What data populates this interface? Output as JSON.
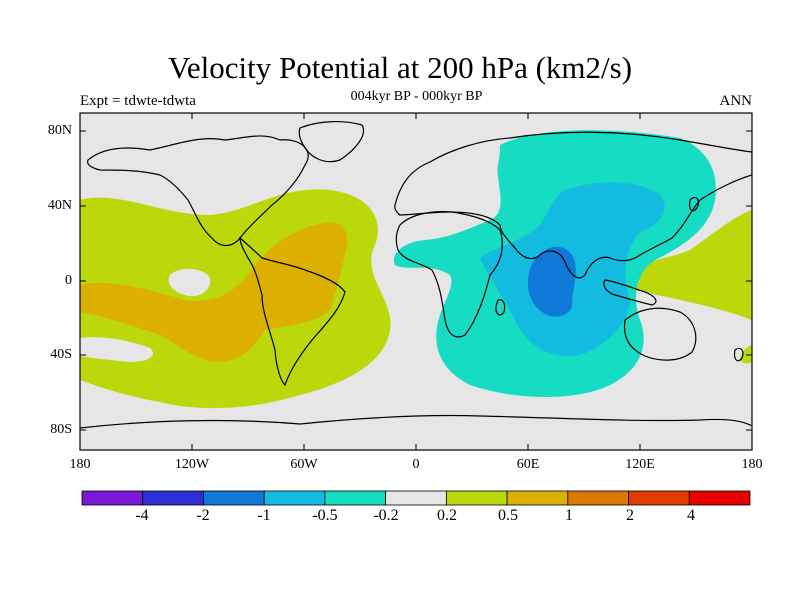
{
  "title": "Velocity Potential at 200 hPa (km2/s)",
  "left_string": "Expt = tdwte-tdwta",
  "center_string": "004kyr BP - 000kyr BP",
  "right_string": "ANN",
  "lat_ticks": [
    "80N",
    "40N",
    "0",
    "40S",
    "80S"
  ],
  "lon_ticks": [
    "180",
    "120W",
    "60W",
    "0",
    "60E",
    "120E",
    "180"
  ],
  "colorbar": {
    "labels": [
      "-4",
      "-2",
      "-1",
      "-0.5",
      "-0.2",
      "0.2",
      "0.5",
      "1",
      "2",
      "4"
    ],
    "colors": [
      "#7a18d8",
      "#2a30d6",
      "#0f79d8",
      "#14bbe0",
      "#16dcc4",
      "#e6e6e6",
      "#bcd80a",
      "#dbb000",
      "#dc7800",
      "#e03c00",
      "#e80000"
    ]
  },
  "map_colors": {
    "background": "#e6e6e6",
    "pos_02": "#bcd80a",
    "pos_05": "#dbb000",
    "neg_02": "#16dcc4",
    "neg_05": "#14bbe0",
    "neg_1": "#0f79d8"
  }
}
